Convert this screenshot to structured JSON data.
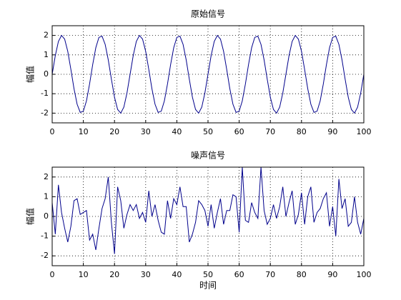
{
  "chart_data": [
    {
      "type": "line",
      "title": "原始信号",
      "ylabel": "幅值",
      "x": [
        0,
        1,
        2,
        3,
        4,
        5,
        6,
        7,
        8,
        9,
        10,
        11,
        12,
        13,
        14,
        15,
        16,
        17,
        18,
        19,
        20,
        21,
        22,
        23,
        24,
        25,
        26,
        27,
        28,
        29,
        30,
        31,
        32,
        33,
        34,
        35,
        36,
        37,
        38,
        39,
        40,
        41,
        42,
        43,
        44,
        45,
        46,
        47,
        48,
        49,
        50,
        51,
        52,
        53,
        54,
        55,
        56,
        57,
        58,
        59,
        60,
        61,
        62,
        63,
        64,
        65,
        66,
        67,
        68,
        69,
        70,
        71,
        72,
        73,
        74,
        75,
        76,
        77,
        78,
        79,
        80,
        81,
        82,
        83,
        84,
        85,
        86,
        87,
        88,
        89,
        90,
        91,
        92,
        93,
        94,
        95,
        96,
        97,
        98,
        99,
        100
      ],
      "series": [
        {
          "name": "原始信号",
          "color": "#00008b",
          "values": [
            0,
            0.96,
            1.69,
            2.0,
            1.81,
            1.18,
            0.25,
            -0.74,
            -1.54,
            -1.96,
            -1.9,
            -1.37,
            -0.5,
            0.5,
            1.37,
            1.9,
            1.96,
            1.54,
            0.74,
            -0.25,
            -1.18,
            -1.81,
            -2.0,
            -1.69,
            -0.96,
            0,
            0.96,
            1.69,
            2.0,
            1.81,
            1.18,
            0.25,
            -0.74,
            -1.54,
            -1.96,
            -1.9,
            -1.37,
            -0.5,
            0.5,
            1.37,
            1.9,
            1.96,
            1.54,
            0.74,
            -0.25,
            -1.18,
            -1.81,
            -2.0,
            -1.69,
            -0.96,
            0,
            0.96,
            1.69,
            2.0,
            1.81,
            1.18,
            0.25,
            -0.74,
            -1.54,
            -1.96,
            -1.9,
            -1.37,
            -0.5,
            0.5,
            1.37,
            1.9,
            1.96,
            1.54,
            0.74,
            -0.25,
            -1.18,
            -1.81,
            -2.0,
            -1.69,
            -0.96,
            0,
            0.96,
            1.69,
            2.0,
            1.81,
            1.18,
            0.25,
            -0.74,
            -1.54,
            -1.96,
            -1.9,
            -1.37,
            -0.5,
            0.5,
            1.37,
            1.9,
            1.96,
            1.54,
            0.74,
            -0.25,
            -1.18,
            -1.81,
            -2.0,
            -1.69,
            -0.96,
            0
          ]
        }
      ],
      "xlim": [
        0,
        100
      ],
      "xticks": [
        0,
        10,
        20,
        30,
        40,
        50,
        60,
        70,
        80,
        90,
        100
      ],
      "ylim": [
        -2.5,
        2.5
      ],
      "yticks": [
        -2,
        -1,
        0,
        1,
        2
      ],
      "grid": true
    },
    {
      "type": "line",
      "title": "噪声信号",
      "ylabel": "幅值",
      "xlabel": "时间",
      "x": [
        0,
        1,
        2,
        3,
        4,
        5,
        6,
        7,
        8,
        9,
        10,
        11,
        12,
        13,
        14,
        15,
        16,
        17,
        18,
        19,
        20,
        21,
        22,
        23,
        24,
        25,
        26,
        27,
        28,
        29,
        30,
        31,
        32,
        33,
        34,
        35,
        36,
        37,
        38,
        39,
        40,
        41,
        42,
        43,
        44,
        45,
        46,
        47,
        48,
        49,
        50,
        51,
        52,
        53,
        54,
        55,
        56,
        57,
        58,
        59,
        60,
        61,
        62,
        63,
        64,
        65,
        66,
        67,
        68,
        69,
        70,
        71,
        72,
        73,
        74,
        75,
        76,
        77,
        78,
        79,
        80,
        81,
        82,
        83,
        84,
        85,
        86,
        87,
        88,
        89,
        90,
        91,
        92,
        93,
        94,
        95,
        96,
        97,
        98,
        99,
        100
      ],
      "series": [
        {
          "name": "噪声信号",
          "color": "#00008b",
          "values": [
            0.7,
            -0.9,
            1.6,
            0.2,
            -0.6,
            -1.3,
            -0.5,
            0.8,
            0.9,
            0.1,
            0.2,
            0.3,
            -1.2,
            -0.9,
            -1.7,
            -0.6,
            0.4,
            0.9,
            2.0,
            -0.3,
            -1.9,
            1.5,
            0.8,
            -0.6,
            0.1,
            0.6,
            0.3,
            0.6,
            -0.1,
            0.2,
            -0.3,
            1.3,
            0.0,
            0.6,
            -0.2,
            -0.8,
            -0.9,
            0.8,
            -0.1,
            0.9,
            0.6,
            1.5,
            0.5,
            0.5,
            -1.3,
            -0.9,
            -0.3,
            0.8,
            0.6,
            0.3,
            -0.5,
            0.6,
            -0.6,
            0.2,
            0.9,
            -0.4,
            0.3,
            0.3,
            1.1,
            1.0,
            -0.8,
            2.5,
            -0.2,
            -0.3,
            0.7,
            0.2,
            -0.1,
            2.5,
            0.3,
            -0.4,
            -0.1,
            0.6,
            -0.1,
            0.5,
            1.5,
            0.0,
            0.7,
            1.3,
            -0.4,
            0.1,
            1.2,
            -0.4,
            1.0,
            1.5,
            -0.3,
            0.2,
            0.4,
            0.9,
            1.2,
            -0.5,
            0.5,
            -1.0,
            1.9,
            0.4,
            0.9,
            -0.5,
            -0.3,
            1.0,
            -0.3,
            -0.9,
            -0.1
          ]
        }
      ],
      "xlim": [
        0,
        100
      ],
      "xticks": [
        0,
        10,
        20,
        30,
        40,
        50,
        60,
        70,
        80,
        90,
        100
      ],
      "ylim": [
        -2.5,
        2.5
      ],
      "yticks": [
        -2,
        -1,
        0,
        1,
        2
      ],
      "grid": true
    }
  ]
}
